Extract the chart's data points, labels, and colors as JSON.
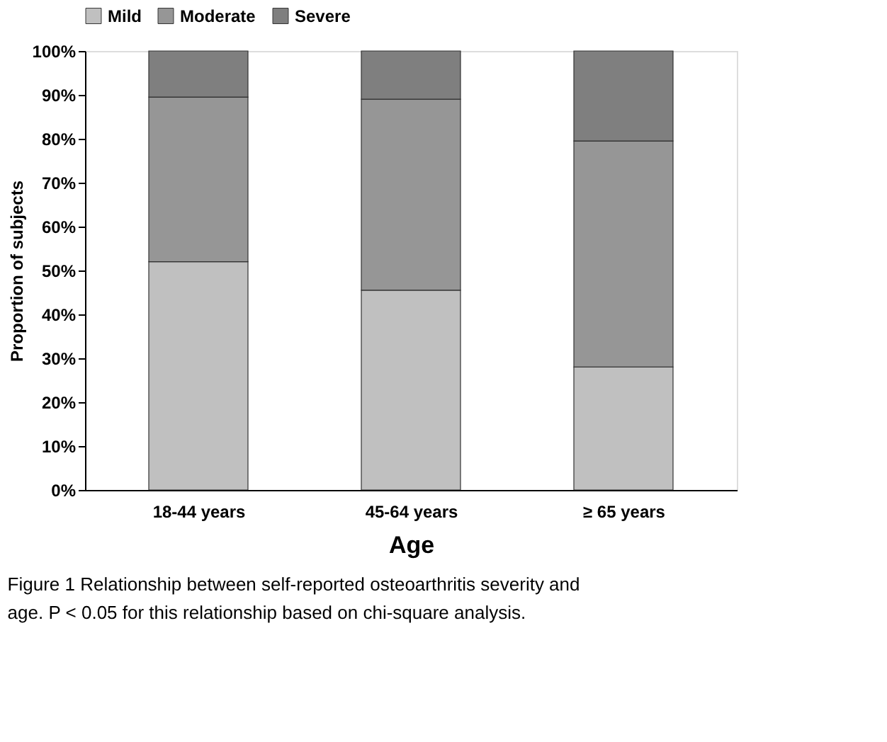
{
  "chart_data": {
    "type": "bar",
    "stacked": true,
    "xlabel": "Age",
    "ylabel": "Proportion of subjects",
    "categories": [
      "18-44 years",
      "45-64 years",
      "≥ 65 years"
    ],
    "series": [
      {
        "name": "Mild",
        "color": "#c0c0c0",
        "values": [
          52,
          45.5,
          28
        ]
      },
      {
        "name": "Moderate",
        "color": "#969696",
        "values": [
          37.5,
          43.5,
          51.5
        ]
      },
      {
        "name": "Severe",
        "color": "#7f7f7f",
        "values": [
          10.5,
          11,
          20.5
        ]
      }
    ],
    "ylim": [
      0,
      100
    ],
    "yticks": [
      {
        "value": 0,
        "label": "0%"
      },
      {
        "value": 10,
        "label": "10%"
      },
      {
        "value": 20,
        "label": "20%"
      },
      {
        "value": 30,
        "label": "30%"
      },
      {
        "value": 40,
        "label": "40%"
      },
      {
        "value": 50,
        "label": "50%"
      },
      {
        "value": 60,
        "label": "60%"
      },
      {
        "value": 70,
        "label": "70%"
      },
      {
        "value": 80,
        "label": "80%"
      },
      {
        "value": 90,
        "label": "90%"
      },
      {
        "value": 100,
        "label": "100%"
      }
    ],
    "legend": "top",
    "grid": false,
    "annotations": [
      "Figure 1 Relationship between self-reported osteoarthritis severity and age. P < 0.05 for this relationship based on chi-square analysis."
    ]
  }
}
